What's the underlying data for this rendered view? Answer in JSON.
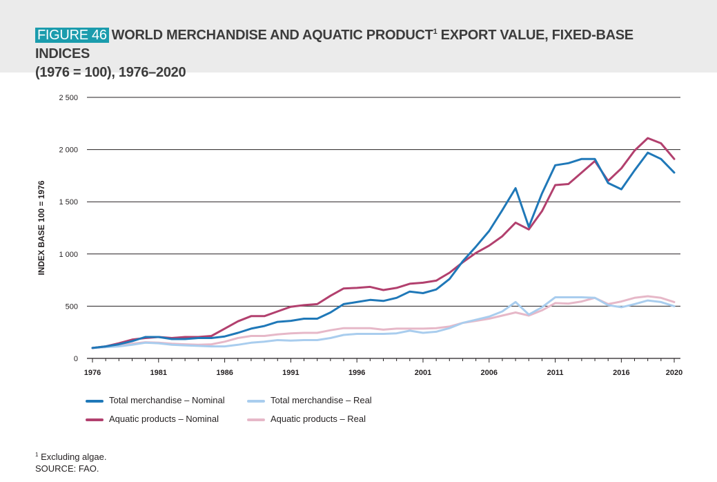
{
  "figure_tag": "FIGURE 46",
  "title_main": "WORLD MERCHANDISE AND AQUATIC PRODUCT",
  "title_sup": "1",
  "title_rest": " EXPORT VALUE, FIXED-BASE INDICES",
  "title_line2": "(1976 = 100), 1976–2020",
  "footnote_mark": "1",
  "footnote_text": " Excluding algae.",
  "source": "SOURCE: FAO.",
  "chart_data": {
    "type": "line",
    "title": "",
    "ylabel": "INDEX BASE 100 = 1976",
    "xlabel": "",
    "ylim": [
      0,
      2500
    ],
    "xlim": [
      1976,
      2020
    ],
    "grid": true,
    "legend_placement": "bottom",
    "y_ticks": [
      {
        "value": 0,
        "label": "0"
      },
      {
        "value": 500,
        "label": "500"
      },
      {
        "value": 1000,
        "label": "1 000"
      },
      {
        "value": 1500,
        "label": "1 500"
      },
      {
        "value": 2000,
        "label": "2 000"
      },
      {
        "value": 2500,
        "label": "2 500"
      }
    ],
    "x_ticks": [
      {
        "value": 1976,
        "label": "1976"
      },
      {
        "value": 1981,
        "label": "1981"
      },
      {
        "value": 1986,
        "label": "1986"
      },
      {
        "value": 1991,
        "label": "1991"
      },
      {
        "value": 1996,
        "label": "1996"
      },
      {
        "value": 2001,
        "label": "2001"
      },
      {
        "value": 2006,
        "label": "2006"
      },
      {
        "value": 2011,
        "label": "2011"
      },
      {
        "value": 2016,
        "label": "2016"
      },
      {
        "value": 2020,
        "label": "2020"
      }
    ],
    "x": [
      1976,
      1977,
      1978,
      1979,
      1980,
      1981,
      1982,
      1983,
      1984,
      1985,
      1986,
      1987,
      1988,
      1989,
      1990,
      1991,
      1992,
      1993,
      1994,
      1995,
      1996,
      1997,
      1998,
      1999,
      2000,
      2001,
      2002,
      2003,
      2004,
      2005,
      2006,
      2007,
      2008,
      2009,
      2010,
      2011,
      2012,
      2013,
      2014,
      2015,
      2016,
      2017,
      2018,
      2019,
      2020
    ],
    "series": [
      {
        "name": "Total merchandise – Nominal",
        "color": "#1f78b8",
        "values": [
          100,
          115,
          135,
          165,
          205,
          205,
          185,
          185,
          195,
          195,
          210,
          245,
          285,
          310,
          350,
          360,
          380,
          380,
          440,
          520,
          540,
          560,
          550,
          580,
          640,
          625,
          660,
          760,
          930,
          1070,
          1220,
          1420,
          1630,
          1260,
          1580,
          1850,
          1870,
          1910,
          1910,
          1680,
          1620,
          1800,
          1970,
          1910,
          1780
        ]
      },
      {
        "name": "Aquatic products – Nominal",
        "color": "#b2406e",
        "values": [
          100,
          115,
          145,
          180,
          195,
          205,
          195,
          205,
          205,
          215,
          285,
          355,
          405,
          405,
          450,
          495,
          510,
          520,
          600,
          670,
          675,
          685,
          655,
          675,
          715,
          725,
          745,
          820,
          920,
          1010,
          1080,
          1170,
          1300,
          1235,
          1410,
          1660,
          1670,
          1780,
          1890,
          1700,
          1820,
          1990,
          2110,
          2060,
          1910
        ]
      },
      {
        "name": "Total merchandise – Real",
        "color": "#a9cdee",
        "values": [
          100,
          108,
          115,
          130,
          150,
          145,
          130,
          125,
          120,
          115,
          115,
          130,
          150,
          160,
          175,
          170,
          175,
          175,
          195,
          225,
          235,
          235,
          235,
          240,
          265,
          245,
          255,
          290,
          340,
          370,
          400,
          450,
          540,
          420,
          490,
          585,
          585,
          585,
          580,
          510,
          490,
          520,
          555,
          540,
          500
        ]
      },
      {
        "name": "Aquatic products – Real",
        "color": "#e6b8c8",
        "values": [
          100,
          110,
          125,
          140,
          155,
          150,
          140,
          135,
          130,
          135,
          160,
          195,
          215,
          215,
          230,
          240,
          245,
          245,
          270,
          290,
          290,
          290,
          275,
          285,
          285,
          285,
          290,
          305,
          340,
          360,
          380,
          410,
          440,
          410,
          460,
          530,
          525,
          545,
          580,
          520,
          545,
          580,
          595,
          580,
          540
        ]
      }
    ]
  }
}
